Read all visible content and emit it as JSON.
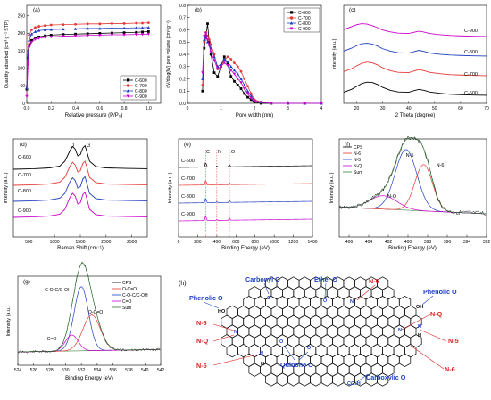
{
  "chart_data": [
    {
      "id": "a",
      "panel_label": "(a)",
      "type": "line",
      "xlabel": "Relative pressure (P/P₀)",
      "ylabel": "Quantity adsorbed (cm³ g⁻¹ STP)",
      "xlim": [
        0,
        1.1
      ],
      "ylim": [
        0,
        280
      ],
      "xticks": [
        "0.0",
        "0.2",
        "0.4",
        "0.6",
        "0.8",
        "1.0"
      ],
      "yticks": [
        "0",
        "50",
        "100",
        "150",
        "200",
        "250"
      ],
      "legend_position": "bottom-right",
      "series": [
        {
          "name": "C-600",
          "color": "#000000",
          "marker": "square",
          "x": [
            0.0,
            0.01,
            0.02,
            0.04,
            0.07,
            0.1,
            0.15,
            0.2,
            0.3,
            0.4,
            0.5,
            0.6,
            0.7,
            0.8,
            0.9,
            0.95,
            1.0
          ],
          "y": [
            40,
            130,
            165,
            180,
            187,
            190,
            193,
            195,
            197,
            198,
            199,
            200,
            201,
            202,
            203,
            204,
            205
          ]
        },
        {
          "name": "C-700",
          "color": "#e53935",
          "marker": "circle",
          "x": [
            0.0,
            0.01,
            0.02,
            0.04,
            0.07,
            0.1,
            0.15,
            0.2,
            0.3,
            0.4,
            0.5,
            0.6,
            0.7,
            0.8,
            0.9,
            0.95,
            1.0
          ],
          "y": [
            50,
            150,
            195,
            210,
            217,
            220,
            222,
            224,
            225,
            226,
            227,
            227,
            228,
            228,
            229,
            229,
            230
          ]
        },
        {
          "name": "C-800",
          "color": "#1e3fbf",
          "marker": "triangle",
          "x": [
            0.0,
            0.01,
            0.02,
            0.04,
            0.07,
            0.1,
            0.15,
            0.2,
            0.3,
            0.4,
            0.5,
            0.6,
            0.7,
            0.8,
            0.9,
            0.95,
            1.0
          ],
          "y": [
            45,
            140,
            180,
            198,
            205,
            208,
            210,
            211,
            212,
            213,
            214,
            214,
            215,
            215,
            216,
            216,
            217
          ]
        },
        {
          "name": "C-900",
          "color": "#cc00cc",
          "marker": "triangle-down",
          "x": [
            0.0,
            0.01,
            0.02,
            0.04,
            0.07,
            0.1,
            0.15,
            0.2,
            0.3,
            0.4,
            0.5,
            0.6,
            0.7,
            0.8,
            0.9,
            0.95,
            1.0
          ],
          "y": [
            20,
            110,
            160,
            175,
            183,
            186,
            189,
            190,
            192,
            193,
            194,
            195,
            196,
            196,
            197,
            197,
            198
          ]
        }
      ]
    },
    {
      "id": "b",
      "panel_label": "(b)",
      "type": "line",
      "xlabel": "Pore width (nm)",
      "ylabel": "dV/dlog(W) pore volume (cm³ g⁻¹)",
      "xlim": [
        0,
        4
      ],
      "ylim": [
        0,
        0.8
      ],
      "xticks": [
        "0",
        "1",
        "2",
        "3",
        "4"
      ],
      "yticks": [
        "0.0",
        "0.1",
        "0.2",
        "0.3",
        "0.4",
        "0.5",
        "0.6",
        "0.7",
        "0.8"
      ],
      "legend_position": "top-right",
      "series": [
        {
          "name": "C-600",
          "color": "#000000",
          "marker": "square",
          "x": [
            0.45,
            0.5,
            0.55,
            0.6,
            0.65,
            0.7,
            0.8,
            0.9,
            1.0,
            1.1,
            1.2,
            1.3,
            1.4,
            1.5,
            1.6,
            1.7,
            1.8,
            1.9,
            2.0,
            2.2,
            2.5,
            3.0,
            3.5,
            4.0
          ],
          "y": [
            0.1,
            0.45,
            0.55,
            0.65,
            0.5,
            0.4,
            0.25,
            0.22,
            0.3,
            0.38,
            0.32,
            0.22,
            0.18,
            0.15,
            0.12,
            0.08,
            0.05,
            0.03,
            0.01,
            0.0,
            0.0,
            0.0,
            0.0,
            0.0
          ]
        },
        {
          "name": "C-700",
          "color": "#e53935",
          "marker": "circle",
          "x": [
            0.45,
            0.5,
            0.55,
            0.6,
            0.65,
            0.7,
            0.8,
            0.9,
            1.0,
            1.1,
            1.2,
            1.3,
            1.4,
            1.5,
            1.6,
            1.7,
            1.8,
            1.9,
            2.0,
            2.2,
            2.5,
            3.0,
            3.5,
            4.0
          ],
          "y": [
            0.15,
            0.5,
            0.58,
            0.55,
            0.52,
            0.48,
            0.4,
            0.28,
            0.3,
            0.35,
            0.38,
            0.36,
            0.33,
            0.3,
            0.26,
            0.2,
            0.14,
            0.08,
            0.03,
            0.01,
            0.0,
            0.0,
            0.0,
            0.0
          ]
        },
        {
          "name": "C-800",
          "color": "#1e3fbf",
          "marker": "triangle",
          "x": [
            0.45,
            0.5,
            0.55,
            0.6,
            0.65,
            0.7,
            0.8,
            0.9,
            1.0,
            1.1,
            1.2,
            1.3,
            1.4,
            1.5,
            1.6,
            1.7,
            1.8,
            1.9,
            2.0,
            2.2,
            2.5,
            3.0,
            3.5,
            4.0
          ],
          "y": [
            0.2,
            0.52,
            0.56,
            0.5,
            0.48,
            0.45,
            0.38,
            0.3,
            0.32,
            0.36,
            0.34,
            0.3,
            0.27,
            0.24,
            0.2,
            0.15,
            0.1,
            0.06,
            0.02,
            0.01,
            0.0,
            0.0,
            0.0,
            0.0
          ]
        },
        {
          "name": "C-900",
          "color": "#cc00cc",
          "marker": "triangle-down",
          "x": [
            0.45,
            0.5,
            0.55,
            0.6,
            0.65,
            0.7,
            0.8,
            0.9,
            1.0,
            1.1,
            1.2,
            1.3,
            1.4,
            1.5,
            1.6,
            1.7,
            1.8,
            1.9,
            2.0,
            2.2,
            2.5,
            3.0,
            3.5,
            4.0
          ],
          "y": [
            0.25,
            0.55,
            0.57,
            0.52,
            0.47,
            0.42,
            0.35,
            0.28,
            0.3,
            0.33,
            0.31,
            0.27,
            0.24,
            0.2,
            0.17,
            0.12,
            0.08,
            0.04,
            0.02,
            0.01,
            0.0,
            0.0,
            0.0,
            0.0
          ]
        }
      ]
    },
    {
      "id": "c",
      "panel_label": "(c)",
      "type": "line",
      "xlabel": "2 Theta (degree)",
      "ylabel": "Intensity (a.u.)",
      "xlim": [
        15,
        70
      ],
      "xticks": [
        "20",
        "30",
        "40",
        "50",
        "60",
        "70"
      ],
      "series": [
        {
          "name": "C-600",
          "color": "#000000",
          "offset": 0,
          "x": [
            15,
            18,
            20,
            22,
            24,
            26,
            28,
            30,
            33,
            36,
            40,
            42,
            44,
            46,
            48,
            52,
            56,
            60,
            65,
            70
          ],
          "y": [
            0.2,
            0.35,
            0.5,
            0.65,
            0.72,
            0.7,
            0.6,
            0.45,
            0.3,
            0.22,
            0.2,
            0.28,
            0.35,
            0.3,
            0.22,
            0.15,
            0.1,
            0.08,
            0.06,
            0.05
          ]
        },
        {
          "name": "C-700",
          "color": "#e53935",
          "offset": 1,
          "x": [
            15,
            18,
            20,
            22,
            24,
            26,
            28,
            30,
            33,
            36,
            40,
            42,
            44,
            46,
            48,
            52,
            56,
            60,
            65,
            70
          ],
          "y": [
            0.25,
            0.4,
            0.55,
            0.68,
            0.74,
            0.7,
            0.6,
            0.45,
            0.3,
            0.22,
            0.2,
            0.28,
            0.36,
            0.3,
            0.22,
            0.15,
            0.1,
            0.08,
            0.06,
            0.05
          ]
        },
        {
          "name": "C-800",
          "color": "#1e3fbf",
          "offset": 2,
          "x": [
            15,
            18,
            20,
            22,
            24,
            26,
            28,
            30,
            33,
            36,
            40,
            42,
            44,
            46,
            48,
            52,
            56,
            60,
            65,
            70
          ],
          "y": [
            0.3,
            0.45,
            0.58,
            0.68,
            0.7,
            0.66,
            0.56,
            0.42,
            0.3,
            0.22,
            0.2,
            0.27,
            0.34,
            0.28,
            0.2,
            0.14,
            0.1,
            0.08,
            0.06,
            0.05
          ]
        },
        {
          "name": "C-900",
          "color": "#cc00cc",
          "offset": 3,
          "x": [
            15,
            18,
            20,
            22,
            24,
            26,
            28,
            30,
            33,
            36,
            40,
            42,
            44,
            46,
            48,
            52,
            56,
            60,
            65,
            70
          ],
          "y": [
            0.4,
            0.55,
            0.65,
            0.7,
            0.68,
            0.6,
            0.5,
            0.38,
            0.28,
            0.22,
            0.2,
            0.26,
            0.32,
            0.27,
            0.2,
            0.14,
            0.1,
            0.08,
            0.06,
            0.05
          ]
        }
      ]
    },
    {
      "id": "d",
      "panel_label": "(d)",
      "type": "line",
      "xlabel": "Raman Shift (cm⁻¹)",
      "ylabel": "Intensity (a.u.)",
      "xlim": [
        200,
        2800
      ],
      "xticks": [
        "500",
        "1000",
        "1500",
        "2000",
        "2500"
      ],
      "annotations": [
        "D",
        "G"
      ],
      "series": [
        {
          "name": "C-600",
          "color": "#000000",
          "offset": 3,
          "x": [
            200,
            600,
            900,
            1100,
            1200,
            1300,
            1350,
            1400,
            1450,
            1500,
            1550,
            1590,
            1620,
            1680,
            1800,
            2000,
            2400,
            2800
          ],
          "y": [
            0.0,
            0.02,
            0.05,
            0.12,
            0.3,
            0.7,
            0.85,
            0.75,
            0.5,
            0.55,
            0.8,
            0.88,
            0.7,
            0.3,
            0.1,
            0.05,
            0.03,
            0.02
          ]
        },
        {
          "name": "C-700",
          "color": "#e53935",
          "offset": 2,
          "x": [
            200,
            600,
            900,
            1100,
            1200,
            1300,
            1350,
            1400,
            1450,
            1500,
            1550,
            1590,
            1620,
            1680,
            1800,
            2000,
            2400,
            2800
          ],
          "y": [
            0.0,
            0.02,
            0.05,
            0.12,
            0.3,
            0.72,
            0.86,
            0.76,
            0.5,
            0.55,
            0.82,
            0.9,
            0.72,
            0.3,
            0.1,
            0.05,
            0.03,
            0.02
          ]
        },
        {
          "name": "C-800",
          "color": "#1e3fbf",
          "offset": 1,
          "x": [
            200,
            600,
            900,
            1100,
            1200,
            1300,
            1350,
            1400,
            1450,
            1500,
            1550,
            1590,
            1620,
            1680,
            1800,
            2000,
            2400,
            2800
          ],
          "y": [
            0.0,
            0.02,
            0.05,
            0.12,
            0.3,
            0.74,
            0.88,
            0.78,
            0.5,
            0.55,
            0.84,
            0.92,
            0.72,
            0.3,
            0.1,
            0.05,
            0.03,
            0.02
          ]
        },
        {
          "name": "C-900",
          "color": "#cc00cc",
          "offset": 0,
          "x": [
            200,
            600,
            900,
            1100,
            1200,
            1300,
            1350,
            1400,
            1450,
            1500,
            1550,
            1590,
            1620,
            1680,
            1800,
            2000,
            2400,
            2800
          ],
          "y": [
            0.0,
            0.02,
            0.05,
            0.12,
            0.3,
            0.76,
            0.9,
            0.8,
            0.5,
            0.55,
            0.86,
            0.94,
            0.74,
            0.3,
            0.1,
            0.05,
            0.03,
            0.02
          ]
        }
      ]
    },
    {
      "id": "e",
      "panel_label": "(e)",
      "type": "line",
      "xlabel": "Binding Energy (eV)",
      "ylabel": "Intensity (a.u.)",
      "xlim": [
        0,
        1400
      ],
      "xticks": [
        "0",
        "200",
        "400",
        "600",
        "800",
        "1000",
        "1200",
        "1400"
      ],
      "annotations": [
        "C",
        "N",
        "O"
      ],
      "markers_x": [
        284,
        400,
        532
      ],
      "series": [
        {
          "name": "C-600",
          "color": "#000000",
          "offset": 3
        },
        {
          "name": "C-700",
          "color": "#e53935",
          "offset": 2
        },
        {
          "name": "C-800",
          "color": "#1e3fbf",
          "offset": 1
        },
        {
          "name": "C-900",
          "color": "#cc00cc",
          "offset": 0
        }
      ]
    },
    {
      "id": "f",
      "panel_label": "(f)",
      "type": "line",
      "xlabel": "Binding Energy (eV)",
      "ylabel": "Intensity (a.u.)",
      "xlim": [
        407,
        392
      ],
      "xticks": [
        "406",
        "404",
        "402",
        "400",
        "398",
        "396",
        "394",
        "392"
      ],
      "legend_position": "top-left",
      "series": [
        {
          "name": "CPS",
          "color": "#000000"
        },
        {
          "name": "N-6",
          "color": "#e53935"
        },
        {
          "name": "N-5",
          "color": "#1e3fbf"
        },
        {
          "name": "N-Q",
          "color": "#cc00cc"
        },
        {
          "name": "Sum",
          "color": "#2e7d32"
        }
      ],
      "annotations": [
        "N-5",
        "N-6",
        "N-Q"
      ]
    },
    {
      "id": "g",
      "panel_label": "(g)",
      "type": "line",
      "xlabel": "Binding Energy (eV)",
      "ylabel": "Intensity (a.u.)",
      "xlim": [
        524,
        542
      ],
      "xticks": [
        "524",
        "526",
        "528",
        "530",
        "532",
        "534",
        "536",
        "538",
        "540",
        "542"
      ],
      "legend_position": "top-right",
      "series": [
        {
          "name": "CPS",
          "color": "#000000"
        },
        {
          "name": "O-C=O",
          "color": "#e53935"
        },
        {
          "name": "C-O-C/C-OH",
          "color": "#1e3fbf"
        },
        {
          "name": "C=O",
          "color": "#cc00cc"
        },
        {
          "name": "Sum",
          "color": "#2e7d32"
        }
      ],
      "annotations": [
        "C-O-C/C-OH",
        "O-C=O",
        "C=O"
      ]
    }
  ],
  "labels": {
    "a": {
      "s0": "C-600",
      "s1": "C-700",
      "s2": "C-800",
      "s3": "C-900"
    },
    "b": {
      "s0": "C-600",
      "s1": "C-700",
      "s2": "C-800",
      "s3": "C-900"
    },
    "c": {
      "s0": "C-600",
      "s1": "C-700",
      "s2": "C-800",
      "s3": "C-900"
    },
    "d": {
      "s0": "C-600",
      "s1": "C-700",
      "s2": "C-800",
      "s3": "C-900",
      "D": "D",
      "G": "G"
    },
    "e": {
      "s0": "C-600",
      "s1": "C-700",
      "s2": "C-800",
      "s3": "C-900",
      "C": "C",
      "N": "N",
      "O": "O"
    },
    "f": {
      "cps": "CPS",
      "n6": "N-6",
      "n5": "N-5",
      "nq": "N-Q",
      "sum": "Sum",
      "ann_n5": "N-5",
      "ann_n6": "N-6",
      "ann_nq": "N-Q"
    },
    "g": {
      "cps": "CPS",
      "oco": "O-C=O",
      "coc": "C-O-C/C-OH",
      "co": "C=O",
      "sum": "Sum",
      "ann_coc": "C-O-C/C-OH",
      "ann_oco": "O-C=O",
      "ann_co": "C=O"
    }
  },
  "scheme": {
    "label": "(h)",
    "phenolic_left": "Phenolic O",
    "carbonyl": "Carbonyl O",
    "ether": "Ether O",
    "phenolic_right": "Phenolic O",
    "quinone": "Quinone O",
    "carboxylic": "Carboxylic O",
    "n6_a": "N-6",
    "n6_b": "N-6",
    "n6_c": "N-6",
    "nq_a": "N-Q",
    "nq_b": "N-Q",
    "n5_a": "N-5",
    "n5_b": "N-5",
    "ho": "HO",
    "oh": "OH",
    "co2h": "CO₂H",
    "o": "O",
    "n": "N",
    "h": "H"
  },
  "colors": {
    "c600": "#000000",
    "c700": "#e53935",
    "c800": "#1e3fbf",
    "c900": "#cc00cc",
    "sum": "#2e7d32",
    "scheme_blue": "#1c3fc4",
    "scheme_red": "#e02020"
  }
}
